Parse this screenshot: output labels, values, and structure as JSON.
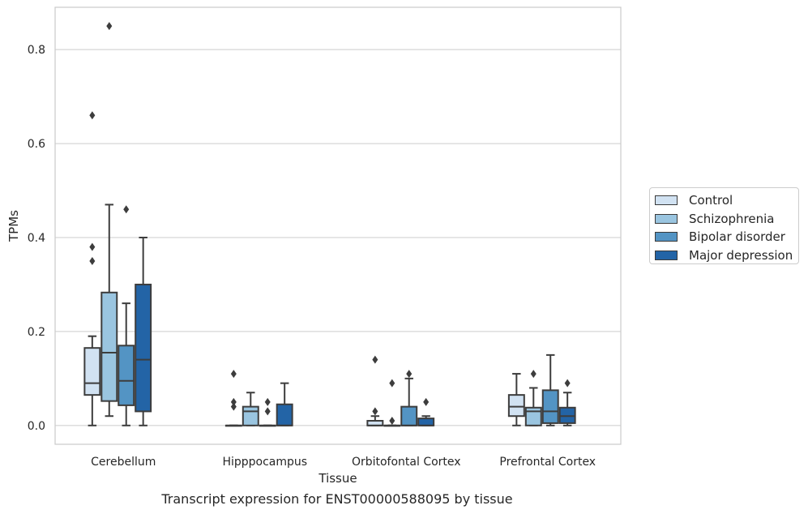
{
  "chart_data": {
    "type": "box",
    "caption": "Transcript expression for ENST00000588095 by tissue",
    "xlabel": "Tissue",
    "ylabel": "TPMs",
    "ylim": [
      -0.04,
      0.89
    ],
    "yticks": [
      0.0,
      0.2,
      0.4,
      0.6,
      0.8
    ],
    "ytick_labels": [
      "0.0",
      "0.2",
      "0.4",
      "0.6",
      "0.8"
    ],
    "grid": "horizontal",
    "legend_position": "right",
    "categories": [
      "Cerebellum",
      "Hipppocampus",
      "Orbitofontal Cortex",
      "Prefrontal Cortex"
    ],
    "series": [
      {
        "name": "Control",
        "color": "#d1e2f2",
        "boxes": [
          {
            "q1": 0.065,
            "median": 0.09,
            "q3": 0.165,
            "whisker_low": 0.0,
            "whisker_high": 0.19,
            "outliers": [
              0.66,
              0.38,
              0.35
            ]
          },
          {
            "q1": 0.0,
            "median": 0.0,
            "q3": 0.0,
            "whisker_low": 0.0,
            "whisker_high": 0.0,
            "outliers": [
              0.11,
              0.05,
              0.04
            ]
          },
          {
            "q1": 0.0,
            "median": 0.0,
            "q3": 0.01,
            "whisker_low": 0.0,
            "whisker_high": 0.02,
            "outliers": [
              0.14,
              0.03
            ]
          },
          {
            "q1": 0.02,
            "median": 0.04,
            "q3": 0.065,
            "whisker_low": 0.0,
            "whisker_high": 0.11,
            "outliers": []
          }
        ]
      },
      {
        "name": "Schizophrenia",
        "color": "#9ac5e0",
        "boxes": [
          {
            "q1": 0.052,
            "median": 0.155,
            "q3": 0.283,
            "whisker_low": 0.02,
            "whisker_high": 0.47,
            "outliers": [
              0.85
            ]
          },
          {
            "q1": 0.0,
            "median": 0.03,
            "q3": 0.04,
            "whisker_low": 0.0,
            "whisker_high": 0.07,
            "outliers": []
          },
          {
            "q1": 0.0,
            "median": 0.0,
            "q3": 0.0,
            "whisker_low": 0.0,
            "whisker_high": 0.0,
            "outliers": [
              0.09,
              0.01
            ]
          },
          {
            "q1": 0.0,
            "median": 0.03,
            "q3": 0.038,
            "whisker_low": 0.0,
            "whisker_high": 0.08,
            "outliers": [
              0.11
            ]
          }
        ]
      },
      {
        "name": "Bipolar disorder",
        "color": "#5394c4",
        "boxes": [
          {
            "q1": 0.043,
            "median": 0.095,
            "q3": 0.17,
            "whisker_low": 0.0,
            "whisker_high": 0.26,
            "outliers": [
              0.46
            ]
          },
          {
            "q1": 0.0,
            "median": 0.0,
            "q3": 0.0,
            "whisker_low": 0.0,
            "whisker_high": 0.0,
            "outliers": [
              0.05,
              0.03
            ]
          },
          {
            "q1": 0.0,
            "median": 0.0,
            "q3": 0.04,
            "whisker_low": 0.0,
            "whisker_high": 0.1,
            "outliers": [
              0.11
            ]
          },
          {
            "q1": 0.005,
            "median": 0.03,
            "q3": 0.075,
            "whisker_low": 0.0,
            "whisker_high": 0.15,
            "outliers": []
          }
        ]
      },
      {
        "name": "Major depression",
        "color": "#2364a6",
        "boxes": [
          {
            "q1": 0.03,
            "median": 0.14,
            "q3": 0.3,
            "whisker_low": 0.0,
            "whisker_high": 0.4,
            "outliers": []
          },
          {
            "q1": 0.0,
            "median": 0.0,
            "q3": 0.045,
            "whisker_low": 0.0,
            "whisker_high": 0.09,
            "outliers": []
          },
          {
            "q1": 0.0,
            "median": 0.0,
            "q3": 0.015,
            "whisker_low": 0.0,
            "whisker_high": 0.02,
            "outliers": [
              0.05
            ]
          },
          {
            "q1": 0.005,
            "median": 0.02,
            "q3": 0.038,
            "whisker_low": 0.0,
            "whisker_high": 0.07,
            "outliers": [
              0.09
            ]
          }
        ]
      }
    ]
  }
}
